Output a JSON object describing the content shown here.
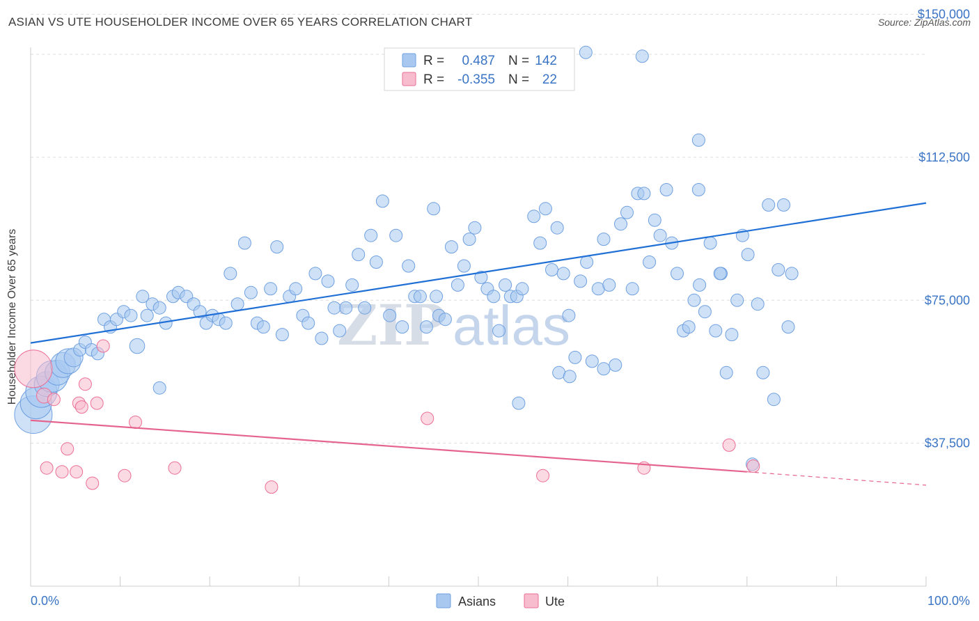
{
  "header": {
    "title": "ASIAN VS UTE HOUSEHOLDER INCOME OVER 65 YEARS CORRELATION CHART",
    "source": "Source: ZipAtlas.com"
  },
  "watermark": {
    "zip": "ZIP",
    "atlas": "atlas"
  },
  "legend_box": {
    "rows": [
      {
        "r_label": "R =",
        "r_value": "0.487",
        "n_label": "N =",
        "n_value": "142",
        "color": "#a8c8f0"
      },
      {
        "r_label": "R =",
        "r_value": "-0.355",
        "n_label": "N =",
        "n_value": "22",
        "color": "#f7bccd"
      }
    ]
  },
  "bottom_legend": [
    {
      "label": "Asians",
      "color": "#a8c8f0"
    },
    {
      "label": "Ute",
      "color": "#f7bccd"
    }
  ],
  "chart_data": {
    "type": "scatter",
    "title": "ASIAN VS UTE HOUSEHOLDER INCOME OVER 65 YEARS CORRELATION CHART",
    "xlabel": "",
    "ylabel": "Householder Income Over 65 years",
    "xlim": [
      0,
      100
    ],
    "ylim": [
      0,
      153750
    ],
    "x_tick_labels": [
      "0.0%",
      "100.0%"
    ],
    "y_ticks": [
      {
        "value": 37500,
        "label": "$37,500"
      },
      {
        "value": 75000,
        "label": "$75,000"
      },
      {
        "value": 112500,
        "label": "$112,500"
      },
      {
        "value": 150000,
        "label": "$150,000"
      }
    ],
    "grid": true,
    "legend_position": "bottom-center",
    "series": [
      {
        "name": "Asians",
        "color": "#6fa0e0",
        "fill": "#a8c8f0",
        "trend": {
          "x": [
            0,
            100
          ],
          "y": [
            63800,
            100500
          ]
        },
        "points": [
          [
            0.3,
            45000,
            3
          ],
          [
            0.6,
            48000,
            2.5
          ],
          [
            1.2,
            51000,
            2.5
          ],
          [
            1.8,
            53000,
            2
          ],
          [
            2.4,
            55000,
            2.5
          ],
          [
            3.0,
            56000,
            2
          ],
          [
            3.6,
            58000,
            2
          ],
          [
            4.2,
            59000,
            2
          ],
          [
            4.8,
            60000,
            1.5
          ],
          [
            5.5,
            62000,
            1
          ],
          [
            6.1,
            64000,
            1
          ],
          [
            6.8,
            62000,
            1
          ],
          [
            7.5,
            61000,
            1
          ],
          [
            8.2,
            70000,
            1
          ],
          [
            8.9,
            68000,
            1
          ],
          [
            9.6,
            70000,
            1
          ],
          [
            10.4,
            72000,
            1
          ],
          [
            11.2,
            71000,
            1
          ],
          [
            11.9,
            63000,
            1.2
          ],
          [
            12.5,
            76000,
            1
          ],
          [
            13.0,
            71000,
            1
          ],
          [
            13.6,
            74000,
            1
          ],
          [
            14.4,
            73000,
            1
          ],
          [
            15.1,
            69000,
            1
          ],
          [
            15.9,
            76000,
            1
          ],
          [
            16.5,
            77000,
            1
          ],
          [
            17.4,
            76000,
            1
          ],
          [
            18.2,
            74000,
            1
          ],
          [
            18.9,
            72000,
            1
          ],
          [
            19.6,
            69000,
            1
          ],
          [
            20.3,
            71000,
            1
          ],
          [
            21.0,
            70000,
            1
          ],
          [
            21.8,
            69000,
            1
          ],
          [
            14.4,
            52000,
            1
          ],
          [
            22.3,
            82000,
            1
          ],
          [
            23.1,
            74000,
            1
          ],
          [
            23.9,
            90000,
            1
          ],
          [
            24.6,
            77000,
            1
          ],
          [
            25.3,
            69000,
            1
          ],
          [
            26.0,
            68000,
            1
          ],
          [
            26.8,
            78000,
            1
          ],
          [
            27.5,
            89000,
            1
          ],
          [
            28.1,
            66000,
            1
          ],
          [
            28.9,
            76000,
            1
          ],
          [
            29.6,
            78000,
            1
          ],
          [
            30.4,
            71000,
            1
          ],
          [
            31.0,
            69000,
            1
          ],
          [
            31.8,
            82000,
            1
          ],
          [
            32.5,
            65000,
            1
          ],
          [
            33.2,
            80000,
            1
          ],
          [
            33.9,
            73000,
            1
          ],
          [
            34.5,
            67000,
            1
          ],
          [
            35.2,
            73000,
            1
          ],
          [
            35.9,
            79000,
            1
          ],
          [
            36.6,
            87000,
            1
          ],
          [
            37.3,
            73000,
            1
          ],
          [
            38.0,
            92000,
            1
          ],
          [
            38.6,
            85000,
            1
          ],
          [
            39.3,
            101000,
            1
          ],
          [
            40.1,
            71000,
            1
          ],
          [
            40.8,
            92000,
            1
          ],
          [
            41.5,
            68000,
            1
          ],
          [
            42.2,
            84000,
            1
          ],
          [
            42.9,
            76000,
            1
          ],
          [
            43.5,
            76000,
            1
          ],
          [
            44.2,
            68000,
            1
          ],
          [
            45.0,
            99000,
            1
          ],
          [
            45.6,
            71000,
            1
          ],
          [
            46.3,
            70000,
            1
          ],
          [
            47.0,
            89000,
            1
          ],
          [
            47.7,
            79000,
            1
          ],
          [
            48.4,
            84000,
            1
          ],
          [
            49.0,
            91000,
            1
          ],
          [
            49.6,
            94000,
            1
          ],
          [
            50.3,
            81000,
            1
          ],
          [
            51.0,
            78000,
            1
          ],
          [
            51.7,
            76000,
            1
          ],
          [
            52.3,
            67000,
            1
          ],
          [
            53.0,
            79000,
            1
          ],
          [
            53.6,
            76000,
            1
          ],
          [
            54.3,
            76000,
            1
          ],
          [
            54.9,
            78000,
            1
          ],
          [
            45.3,
            76000,
            1
          ],
          [
            56.2,
            97000,
            1
          ],
          [
            56.9,
            90000,
            1
          ],
          [
            57.5,
            99000,
            1
          ],
          [
            58.2,
            83000,
            1
          ],
          [
            58.8,
            94000,
            1
          ],
          [
            59.5,
            82000,
            1
          ],
          [
            60.1,
            71000,
            1
          ],
          [
            60.8,
            60000,
            1
          ],
          [
            61.4,
            80000,
            1
          ],
          [
            62.1,
            85000,
            1
          ],
          [
            62.7,
            59000,
            1
          ],
          [
            63.4,
            78000,
            1
          ],
          [
            64.0,
            91000,
            1
          ],
          [
            64.6,
            79000,
            1
          ],
          [
            65.3,
            58000,
            1
          ],
          [
            65.9,
            95000,
            1
          ],
          [
            66.6,
            98000,
            1
          ],
          [
            67.2,
            78000,
            1
          ],
          [
            67.8,
            103000,
            1
          ],
          [
            68.5,
            103000,
            1
          ],
          [
            69.1,
            85000,
            1
          ],
          [
            69.7,
            96000,
            1
          ],
          [
            70.3,
            92000,
            1
          ],
          [
            71.0,
            104000,
            1
          ],
          [
            71.6,
            90000,
            1
          ],
          [
            72.2,
            82000,
            1
          ],
          [
            72.9,
            67000,
            1
          ],
          [
            73.5,
            68000,
            1
          ],
          [
            74.1,
            75000,
            1
          ],
          [
            74.7,
            79000,
            1
          ],
          [
            75.3,
            72000,
            1
          ],
          [
            75.9,
            90000,
            1
          ],
          [
            76.5,
            67000,
            1
          ],
          [
            77.1,
            82000,
            1
          ],
          [
            77.7,
            56000,
            1
          ],
          [
            78.3,
            66000,
            1
          ],
          [
            78.9,
            75000,
            1
          ],
          [
            79.5,
            92000,
            1
          ],
          [
            80.1,
            87000,
            1
          ],
          [
            80.6,
            32000,
            1
          ],
          [
            81.2,
            74000,
            1
          ],
          [
            81.8,
            56000,
            1
          ],
          [
            82.4,
            100000,
            1
          ],
          [
            83.0,
            49000,
            1
          ],
          [
            83.5,
            83000,
            1
          ],
          [
            84.1,
            100000,
            1
          ],
          [
            84.6,
            68000,
            1
          ],
          [
            77.0,
            82000,
            1
          ],
          [
            62.0,
            140000,
            1
          ],
          [
            68.3,
            139000,
            1
          ],
          [
            74.6,
            117000,
            1
          ],
          [
            74.6,
            104000,
            1
          ],
          [
            85.0,
            82000,
            1
          ],
          [
            64.0,
            57000,
            1
          ],
          [
            54.5,
            48000,
            1
          ],
          [
            59.0,
            56000,
            1
          ],
          [
            60.2,
            55000,
            1
          ]
        ]
      },
      {
        "name": "Ute",
        "color": "#ec6e96",
        "fill": "#f7bccd",
        "trend": {
          "x": [
            0,
            80
          ],
          "y": [
            43500,
            30000
          ]
        },
        "trend_dashed": {
          "x": [
            80,
            100
          ],
          "y": [
            30000,
            26500
          ]
        },
        "points": [
          [
            0.3,
            57000,
            3
          ],
          [
            1.5,
            50000,
            1.2
          ],
          [
            1.8,
            31000,
            1
          ],
          [
            2.6,
            49000,
            1
          ],
          [
            3.5,
            30000,
            1
          ],
          [
            4.1,
            36000,
            1
          ],
          [
            5.1,
            30000,
            1
          ],
          [
            5.4,
            48000,
            1
          ],
          [
            5.7,
            47000,
            1
          ],
          [
            6.1,
            53000,
            1
          ],
          [
            6.9,
            27000,
            1
          ],
          [
            7.4,
            48000,
            1
          ],
          [
            8.1,
            63000,
            1
          ],
          [
            10.5,
            29000,
            1
          ],
          [
            11.7,
            43000,
            1
          ],
          [
            16.1,
            31000,
            1
          ],
          [
            26.9,
            26000,
            1
          ],
          [
            44.3,
            44000,
            1
          ],
          [
            57.2,
            29000,
            1
          ],
          [
            68.5,
            31000,
            1
          ],
          [
            78.0,
            37000,
            1
          ],
          [
            80.7,
            31500,
            1
          ]
        ]
      }
    ]
  }
}
